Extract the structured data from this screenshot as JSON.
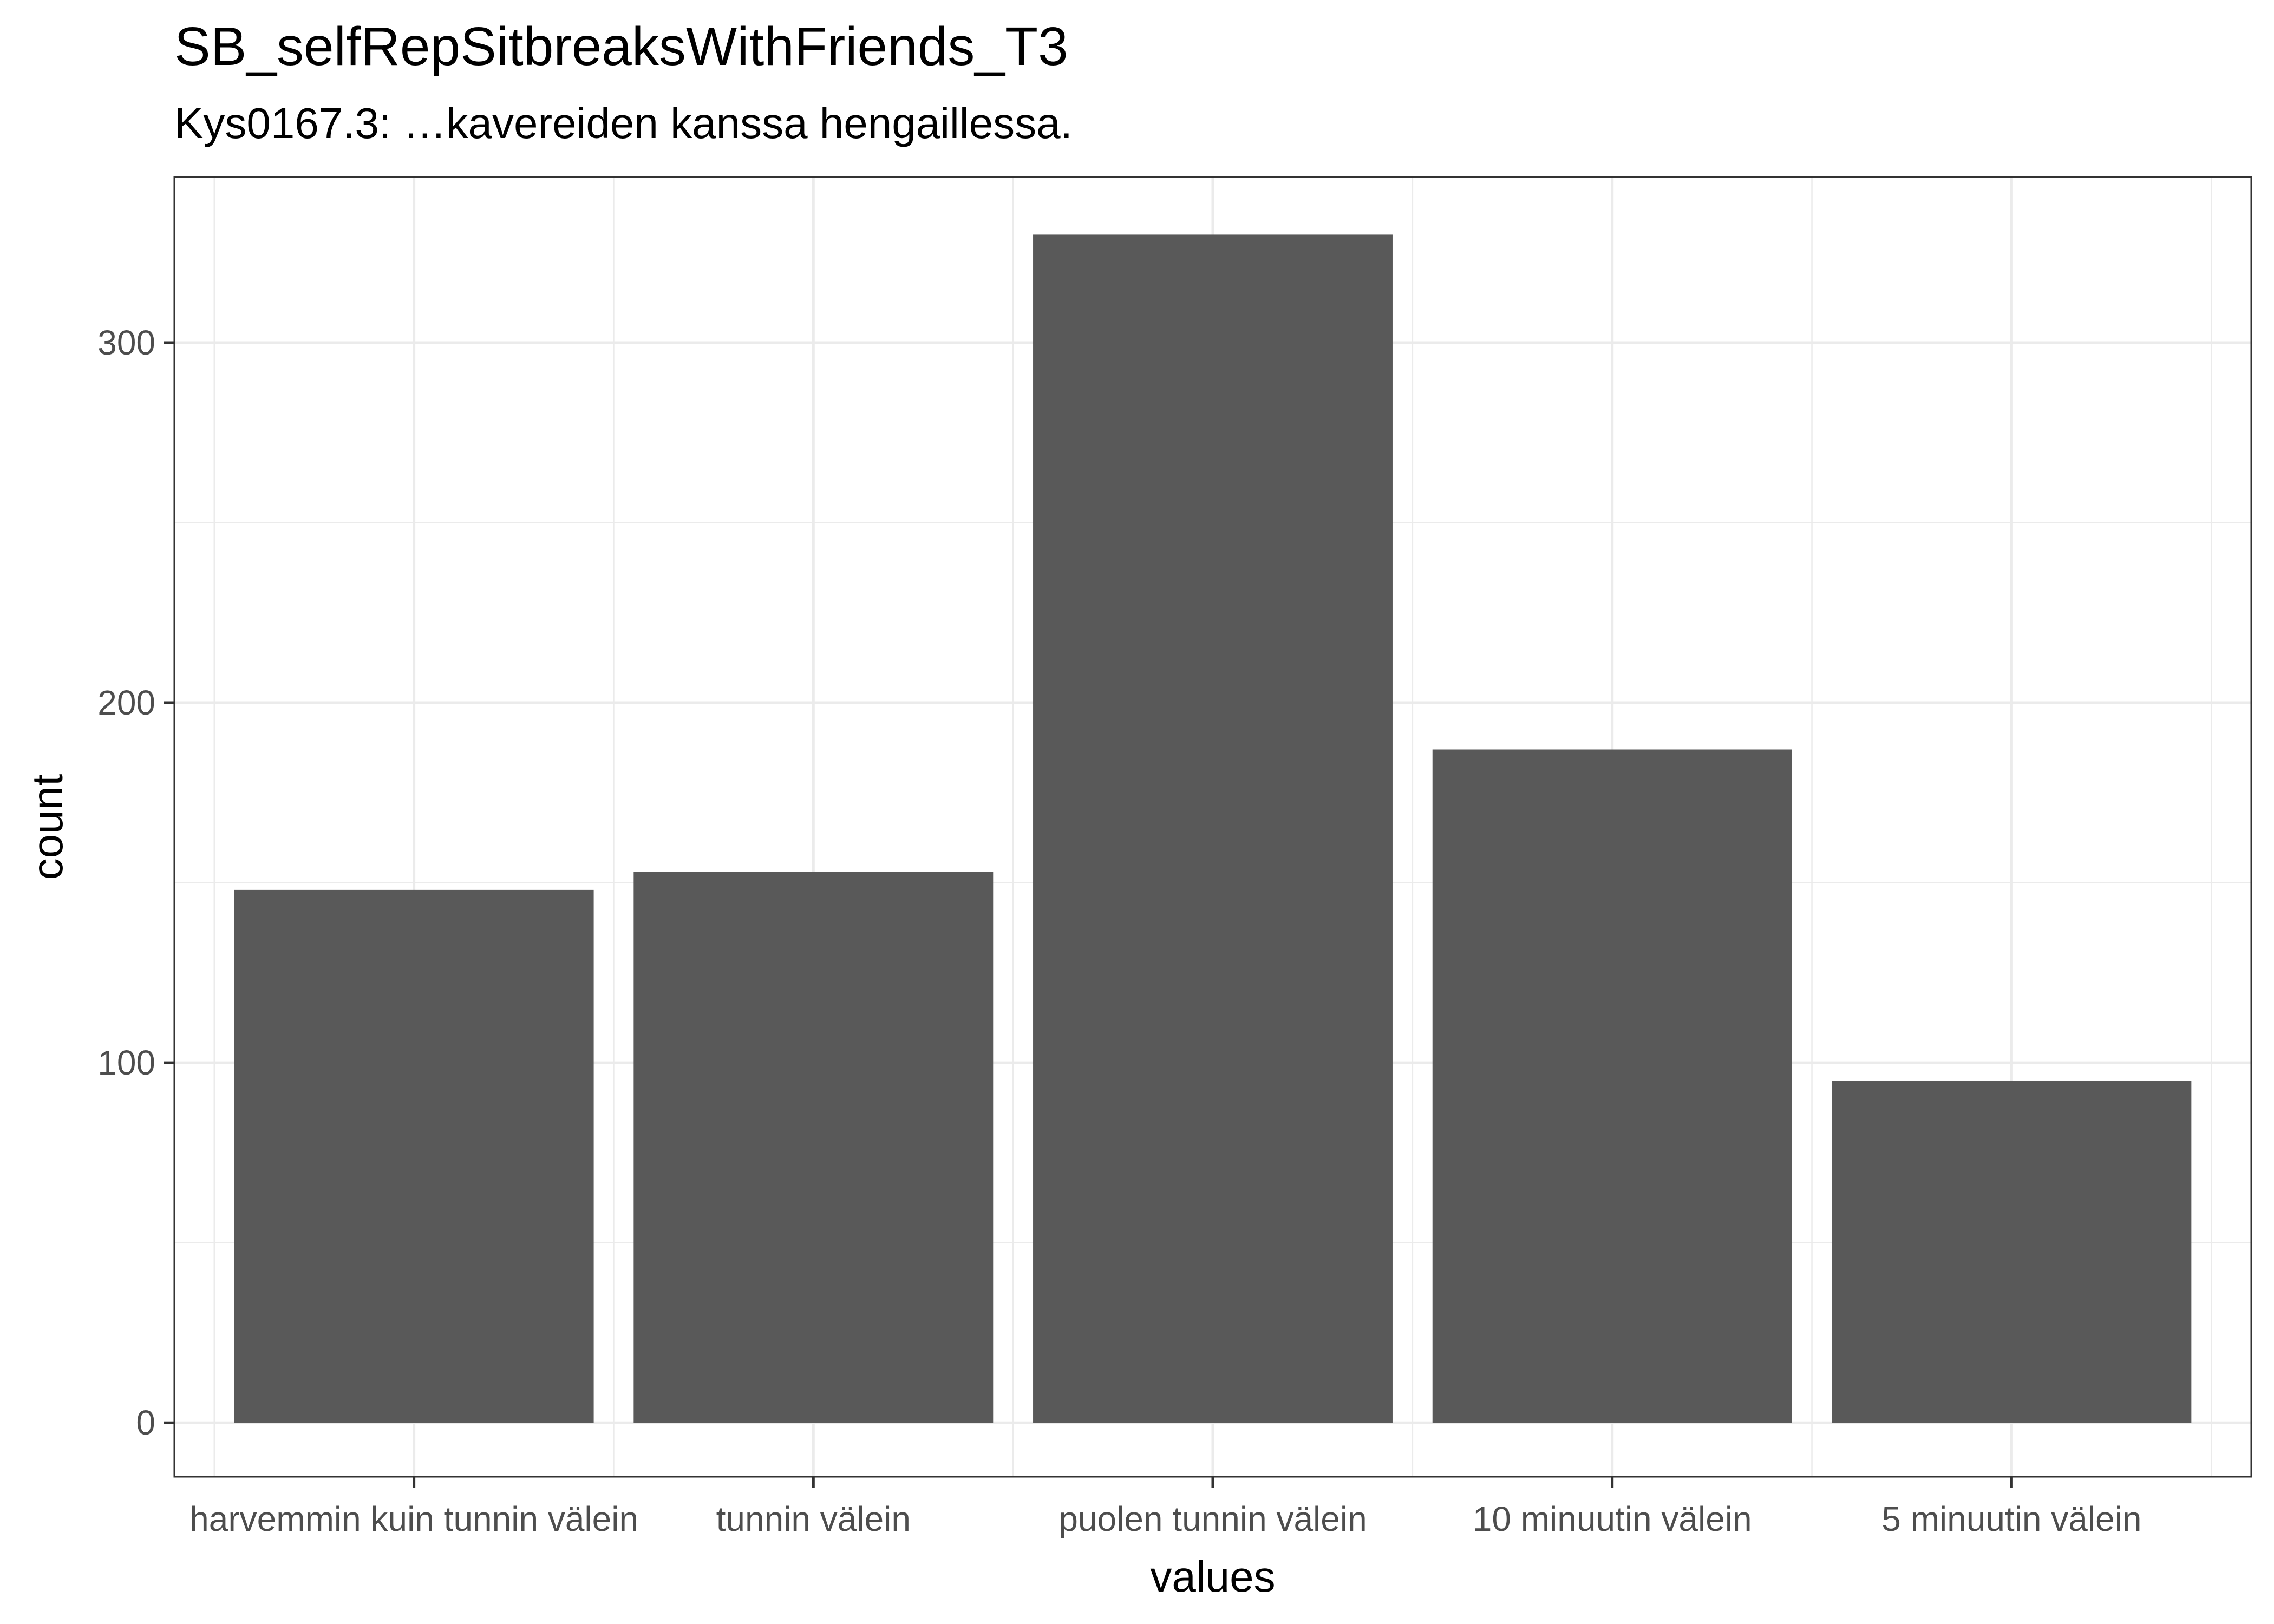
{
  "chart_data": {
    "type": "bar",
    "title": "SB_selfRepSitbreaksWithFriends_T3",
    "subtitle": "Kys0167.3: …kavereiden kanssa hengaillessa.",
    "xlabel": "values",
    "ylabel": "count",
    "categories": [
      "harvemmin kuin tunnin välein",
      "tunnin välein",
      "puolen tunnin välein",
      "10 minuutin välein",
      "5 minuutin välein"
    ],
    "values": [
      148,
      153,
      330,
      187,
      95
    ],
    "ylim": [
      -15,
      346
    ],
    "yticks": [
      0,
      100,
      200,
      300
    ],
    "ytick_labels": [
      "0",
      "100",
      "200",
      "300"
    ],
    "bar_color": "#595959",
    "grid": true,
    "legend": "none"
  }
}
